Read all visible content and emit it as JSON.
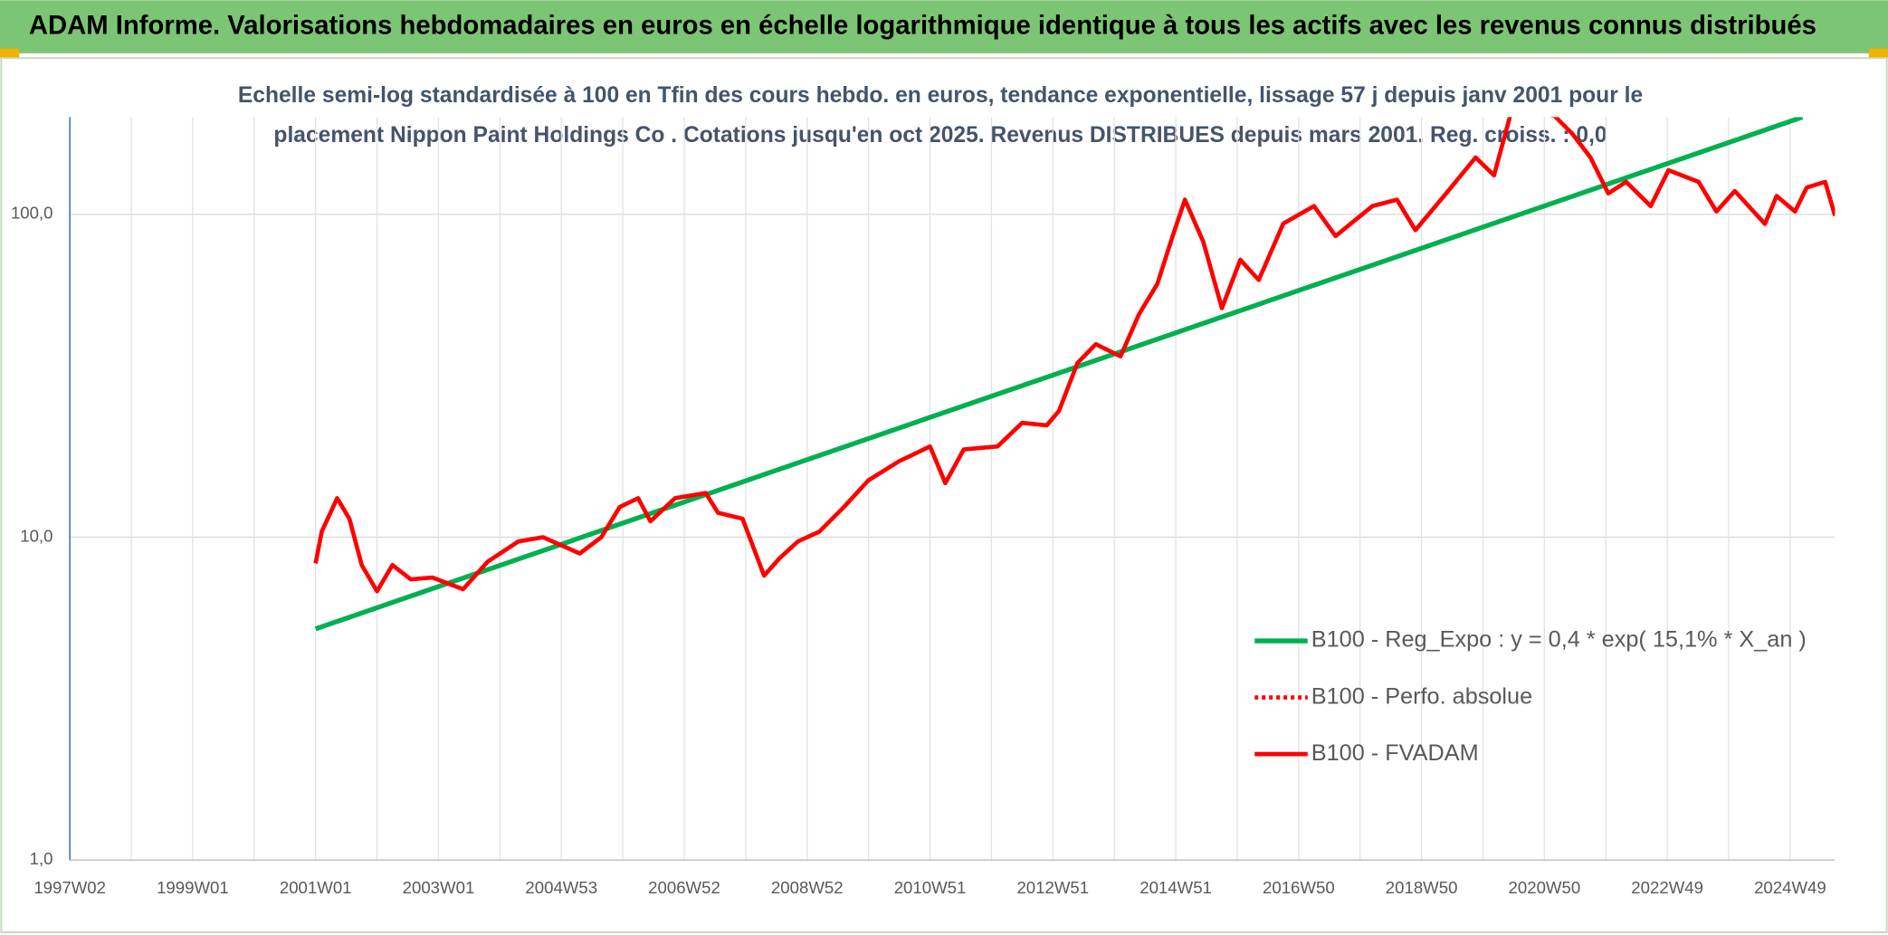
{
  "chart_data": {
    "type": "line",
    "title": "ADAM Informe. Valorisations hebdomadaires en euros en échelle logarithmique identique à tous les actifs avec les revenus connus distribués",
    "subtitle": [
      "Echelle semi-log standardisée à 100 en Tfin des cours hebdo. en euros, tendance exponentielle, lissage 57 j depuis janv 2001 pour le",
      "placement Nippon Paint Holdings Co . Cotations jusqu'en oct 2025. Revenus DISTRIBUES depuis mars 2001. Reg. croiss. : 0,0"
    ],
    "log_y": true,
    "grid": true,
    "legend": "right",
    "xlim": [
      1997.0,
      2025.73
    ],
    "ylim": [
      1,
      200
    ],
    "yticks": [
      {
        "value": 1,
        "label": "1,0"
      },
      {
        "value": 10,
        "label": "10,0"
      },
      {
        "value": 100,
        "label": "100,0"
      }
    ],
    "xticks": [
      {
        "value": 1997,
        "label": "1997W02"
      },
      {
        "value": 1998,
        "label": null
      },
      {
        "value": 1999,
        "label": "1999W01"
      },
      {
        "value": 2000,
        "label": null
      },
      {
        "value": 2001,
        "label": "2001W01"
      },
      {
        "value": 2002,
        "label": null
      },
      {
        "value": 2003,
        "label": "2003W01"
      },
      {
        "value": 2004,
        "label": null
      },
      {
        "value": 2005,
        "label": "2004W53"
      },
      {
        "value": 2006,
        "label": null
      },
      {
        "value": 2007,
        "label": "2006W52"
      },
      {
        "value": 2008,
        "label": null
      },
      {
        "value": 2009,
        "label": "2008W52"
      },
      {
        "value": 2010,
        "label": null
      },
      {
        "value": 2011,
        "label": "2010W51"
      },
      {
        "value": 2012,
        "label": null
      },
      {
        "value": 2013,
        "label": "2012W51"
      },
      {
        "value": 2014,
        "label": null
      },
      {
        "value": 2015,
        "label": "2014W51"
      },
      {
        "value": 2016,
        "label": null
      },
      {
        "value": 2017,
        "label": "2016W50"
      },
      {
        "value": 2018,
        "label": null
      },
      {
        "value": 2019,
        "label": "2018W50"
      },
      {
        "value": 2020,
        "label": null
      },
      {
        "value": 2021,
        "label": "2020W50"
      },
      {
        "value": 2022,
        "label": null
      },
      {
        "value": 2023,
        "label": "2022W49"
      },
      {
        "value": 2024,
        "label": null
      },
      {
        "value": 2025,
        "label": "2024W49"
      }
    ],
    "series": [
      {
        "name": "B100 - Reg_Expo : y = 0,4 * exp( 15,1% *  X_an )",
        "color": "#00b050",
        "style": "solid",
        "x": [
          2001.0,
          2025.2
        ],
        "values": [
          5.2,
          200
        ]
      },
      {
        "name": "B100 - Perfo. absolue",
        "color": "#ff0000",
        "style": "dotted",
        "x": [],
        "values": []
      },
      {
        "name": "B100 - FVADAM",
        "color": "#ff0000",
        "style": "solid",
        "x": [
          2001.0,
          2001.1,
          2001.35,
          2001.55,
          2001.75,
          2002.0,
          2002.25,
          2002.55,
          2002.9,
          2003.4,
          2003.8,
          2004.3,
          2004.7,
          2005.3,
          2005.65,
          2005.95,
          2006.25,
          2006.45,
          2006.85,
          2007.35,
          2007.55,
          2007.95,
          2008.3,
          2008.55,
          2008.85,
          2009.2,
          2009.6,
          2010.0,
          2010.5,
          2011.0,
          2011.25,
          2011.55,
          2012.1,
          2012.5,
          2012.9,
          2013.1,
          2013.4,
          2013.7,
          2014.1,
          2014.4,
          2014.7,
          2014.95,
          2015.15,
          2015.45,
          2015.75,
          2016.05,
          2016.35,
          2016.75,
          2017.25,
          2017.6,
          2018.2,
          2018.6,
          2018.9,
          2019.4,
          2019.88,
          2020.18,
          2020.47,
          2021.16,
          2021.45,
          2021.75,
          2022.04,
          2022.33,
          2022.73,
          2023.02,
          2023.51,
          2023.8,
          2024.1,
          2024.59,
          2024.78,
          2025.08,
          2025.27,
          2025.57,
          2025.73
        ],
        "values": [
          8.3,
          10.4,
          13.2,
          11.4,
          8.2,
          6.8,
          8.2,
          7.4,
          7.5,
          6.9,
          8.4,
          9.7,
          10.0,
          8.9,
          10.0,
          12.4,
          13.2,
          11.2,
          13.2,
          13.7,
          11.9,
          11.4,
          7.6,
          8.6,
          9.7,
          10.4,
          12.4,
          15.0,
          17.2,
          19.1,
          14.7,
          18.7,
          19.1,
          22.6,
          22.2,
          24.6,
          34.6,
          39.6,
          36.3,
          49.0,
          60.9,
          85.6,
          111,
          82.1,
          51.2,
          72.3,
          62.6,
          93.6,
          106,
          85.6,
          106,
          111,
          89.3,
          116,
          150,
          132,
          211,
          202,
          178,
          150,
          116,
          126,
          106,
          137,
          126,
          102,
          118,
          93.4,
          114,
          102,
          121,
          126,
          99
        ]
      }
    ]
  }
}
